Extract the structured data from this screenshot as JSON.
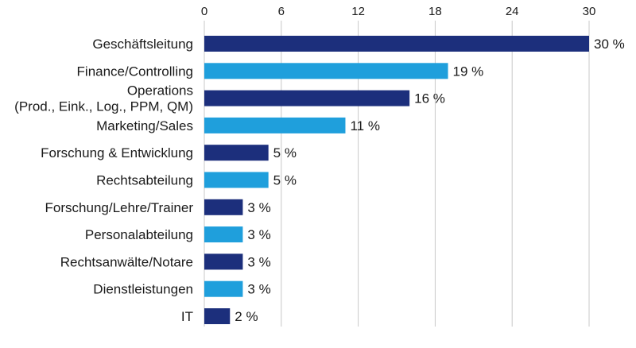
{
  "chart_data": {
    "type": "bar",
    "orientation": "horizontal",
    "title": "",
    "xlabel": "",
    "ylabel": "",
    "xlim": [
      0,
      30
    ],
    "ticks": [
      0,
      6,
      12,
      18,
      24,
      30
    ],
    "tick_labels": [
      "0",
      "6",
      "12",
      "18",
      "24",
      "30"
    ],
    "grid": true,
    "legend": "none",
    "categories": [
      "Geschäftsleitung",
      "Finance/Controlling",
      "Operations\n(Prod., Eink., Log., PPM, QM)",
      "Marketing/Sales",
      "Forschung & Entwicklung",
      "Rechtsabteilung",
      "Forschung/Lehre/Trainer",
      "Personalabteilung",
      "Rechtsanwälte/Notare",
      "Dienstleistungen",
      "IT"
    ],
    "values": [
      30,
      19,
      16,
      11,
      5,
      5,
      3,
      3,
      3,
      3,
      2
    ],
    "value_labels": [
      "30 %",
      "19 %",
      "16 %",
      "11 %",
      "5 %",
      "5 %",
      "3 %",
      "3 %",
      "3 %",
      "3 %",
      "2 %"
    ],
    "bar_colors": [
      "#1c2f7c",
      "#1f9fdc",
      "#1c2f7c",
      "#1f9fdc",
      "#1c2f7c",
      "#1f9fdc",
      "#1c2f7c",
      "#1f9fdc",
      "#1c2f7c",
      "#1f9fdc",
      "#1c2f7c"
    ]
  },
  "colors": {
    "dark_blue": "#1c2f7c",
    "light_blue": "#1f9fdc",
    "grid": "#c8c8c8",
    "text": "#1a1a1a"
  }
}
